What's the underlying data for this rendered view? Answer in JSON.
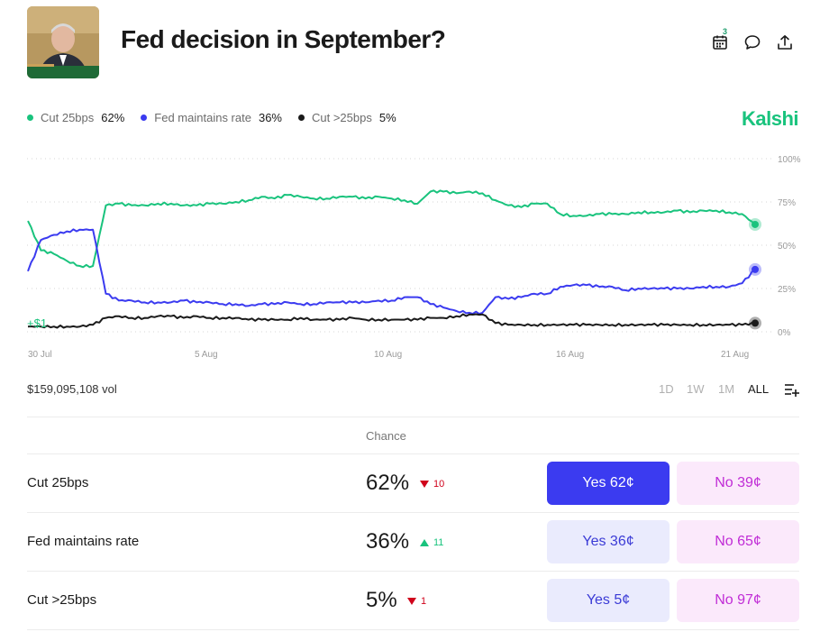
{
  "header": {
    "title": "Fed decision in September?",
    "calendar_badge": "3"
  },
  "legend": [
    {
      "label": "Cut 25bps",
      "value": "62%",
      "color": "#19c37d"
    },
    {
      "label": "Fed maintains rate",
      "value": "36%",
      "color": "#3b3bf0"
    },
    {
      "label": "Cut >25bps",
      "value": "5%",
      "color": "#1a1a1a"
    }
  ],
  "brand": "Kalshi",
  "chart_data": {
    "type": "line",
    "x_ticks": [
      "30 Jul",
      "5 Aug",
      "10 Aug",
      "16 Aug",
      "21 Aug"
    ],
    "y_ticks": [
      "100%",
      "75%",
      "50%",
      "25%",
      "0%"
    ],
    "ylim": [
      0,
      100
    ],
    "grid": true,
    "start_marker": "$1",
    "series": [
      {
        "name": "Cut 25bps",
        "color": "#19c37d",
        "values": [
          64,
          47,
          45,
          41,
          38,
          38,
          73,
          74,
          73,
          73,
          74,
          74,
          73,
          73,
          74,
          74,
          75,
          76,
          78,
          77,
          79,
          78,
          77,
          77,
          78,
          78,
          77,
          78,
          77,
          76,
          74,
          81,
          81,
          80,
          81,
          80,
          76,
          73,
          72,
          74,
          74,
          68,
          67,
          67,
          68,
          68,
          68,
          69,
          69,
          69,
          70,
          69,
          70,
          70,
          69,
          68,
          62
        ]
      },
      {
        "name": "Fed maintains rate",
        "color": "#3b3bf0",
        "values": [
          35,
          53,
          56,
          58,
          59,
          59,
          22,
          18,
          18,
          17,
          17,
          17,
          18,
          17,
          17,
          16,
          16,
          15,
          16,
          16,
          17,
          16,
          16,
          17,
          17,
          17,
          17,
          18,
          18,
          20,
          20,
          16,
          14,
          12,
          11,
          11,
          20,
          19,
          20,
          22,
          22,
          26,
          27,
          27,
          26,
          26,
          24,
          25,
          25,
          25,
          25,
          25,
          26,
          26,
          26,
          28,
          36
        ]
      },
      {
        "name": "Cut >25bps",
        "color": "#1a1a1a",
        "values": [
          3,
          3,
          3,
          3,
          3,
          4,
          8,
          9,
          8,
          8,
          9,
          9,
          8,
          9,
          8,
          8,
          8,
          7,
          7,
          7,
          7,
          8,
          7,
          7,
          7,
          8,
          7,
          7,
          7,
          7,
          7,
          8,
          8,
          9,
          10,
          10,
          5,
          4,
          4,
          4,
          4,
          4,
          4,
          4,
          4,
          4,
          4,
          4,
          4,
          4,
          4,
          4,
          4,
          4,
          4,
          4,
          5
        ]
      }
    ]
  },
  "volume": "$159,095,108 vol",
  "ranges": [
    "1D",
    "1W",
    "1M",
    "ALL"
  ],
  "active_range": "ALL",
  "table": {
    "header": "Chance",
    "rows": [
      {
        "label": "Cut 25bps",
        "chance": "62%",
        "delta": "10",
        "direction": "down",
        "yes": "Yes 62¢",
        "no": "No 39¢"
      },
      {
        "label": "Fed maintains rate",
        "chance": "36%",
        "delta": "11",
        "direction": "up",
        "yes": "Yes 36¢",
        "no": "No 65¢"
      },
      {
        "label": "Cut >25bps",
        "chance": "5%",
        "delta": "1",
        "direction": "down",
        "yes": "Yes 5¢",
        "no": "No 97¢"
      }
    ]
  }
}
